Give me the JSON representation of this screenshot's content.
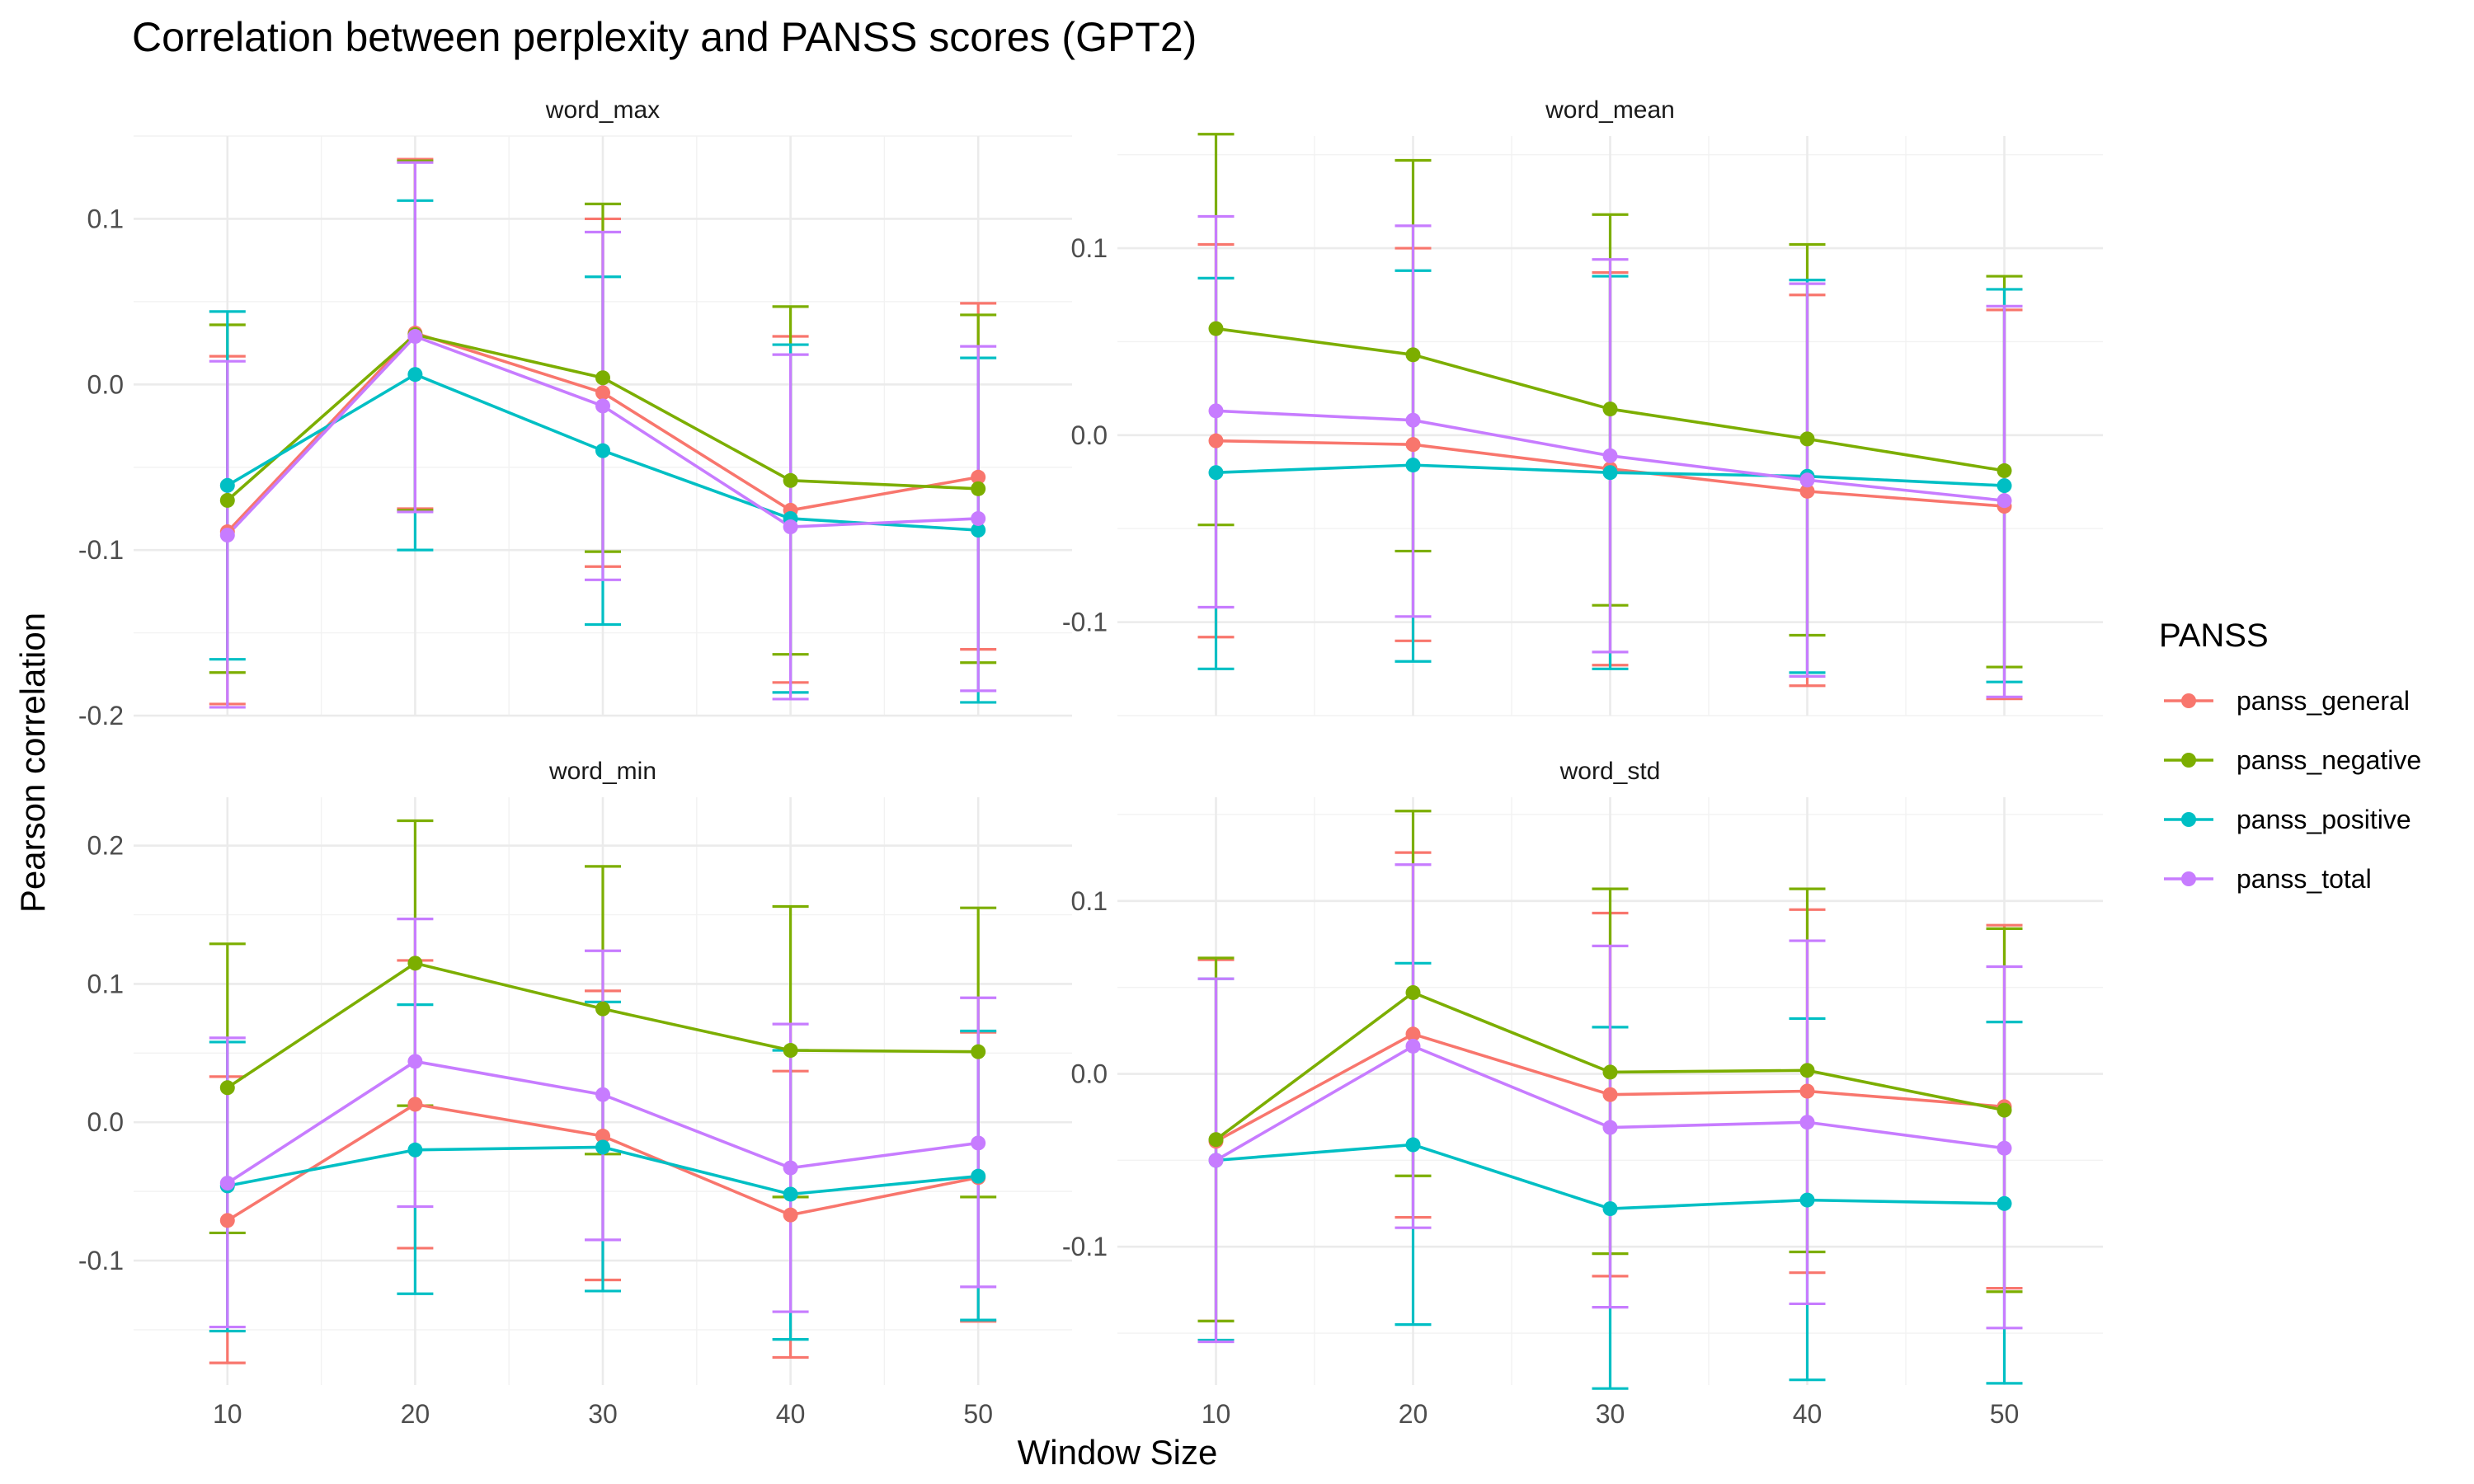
{
  "title": "Correlation between perplexity and PANSS scores (GPT2)",
  "xlabel": "Window Size",
  "ylabel": "Pearson correlation",
  "legend": {
    "title": "PANSS",
    "placement": "right",
    "items": [
      {
        "name": "panss_general",
        "color": "#F8766D"
      },
      {
        "name": "panss_negative",
        "color": "#7CAE00"
      },
      {
        "name": "panss_positive",
        "color": "#00BFC4"
      },
      {
        "name": "panss_total",
        "color": "#C77CFF"
      }
    ]
  },
  "chart_data": [
    {
      "type": "line",
      "facet": "word_max",
      "x": [
        10,
        20,
        30,
        40,
        50
      ],
      "ylim": [
        -0.2,
        0.15
      ],
      "yticks": [
        -0.2,
        -0.1,
        0.0,
        0.1
      ],
      "ytick_labels": [
        "-0.2",
        "-0.1",
        "0.0",
        "0.1"
      ],
      "series": [
        {
          "name": "panss_general",
          "values": [
            -0.089,
            0.031,
            -0.005,
            -0.076,
            -0.056
          ],
          "lower": [
            -0.193,
            -0.075,
            -0.11,
            -0.18,
            -0.16
          ],
          "upper": [
            0.017,
            0.136,
            0.1,
            0.029,
            0.049
          ]
        },
        {
          "name": "panss_negative",
          "values": [
            -0.07,
            0.03,
            0.004,
            -0.058,
            -0.063
          ],
          "lower": [
            -0.174,
            -0.076,
            -0.101,
            -0.163,
            -0.168
          ],
          "upper": [
            0.036,
            0.135,
            0.109,
            0.047,
            0.042
          ]
        },
        {
          "name": "panss_positive",
          "values": [
            -0.061,
            0.006,
            -0.04,
            -0.081,
            -0.088
          ],
          "lower": [
            -0.166,
            -0.1,
            -0.145,
            -0.186,
            -0.192
          ],
          "upper": [
            0.044,
            0.111,
            0.065,
            0.024,
            0.016
          ]
        },
        {
          "name": "panss_total",
          "values": [
            -0.091,
            0.029,
            -0.013,
            -0.086,
            -0.081
          ],
          "lower": [
            -0.195,
            -0.077,
            -0.118,
            -0.19,
            -0.185
          ],
          "upper": [
            0.014,
            0.134,
            0.092,
            0.018,
            0.023
          ]
        }
      ]
    },
    {
      "type": "line",
      "facet": "word_mean",
      "x": [
        10,
        20,
        30,
        40,
        50
      ],
      "ylim": [
        -0.15,
        0.16
      ],
      "yticks": [
        -0.1,
        0.0,
        0.1
      ],
      "ytick_labels": [
        "-0.1",
        "0.0",
        "0.1"
      ],
      "series": [
        {
          "name": "panss_general",
          "values": [
            -0.003,
            -0.005,
            -0.018,
            -0.03,
            -0.038
          ],
          "lower": [
            -0.108,
            -0.11,
            -0.123,
            -0.134,
            -0.141
          ],
          "upper": [
            0.102,
            0.1,
            0.087,
            0.075,
            0.067
          ]
        },
        {
          "name": "panss_negative",
          "values": [
            0.057,
            0.043,
            0.014,
            -0.002,
            -0.019
          ],
          "lower": [
            -0.048,
            -0.062,
            -0.091,
            -0.107,
            -0.124
          ],
          "upper": [
            0.161,
            0.147,
            0.118,
            0.102,
            0.085
          ]
        },
        {
          "name": "panss_positive",
          "values": [
            -0.02,
            -0.016,
            -0.02,
            -0.022,
            -0.027
          ],
          "lower": [
            -0.125,
            -0.121,
            -0.125,
            -0.127,
            -0.132
          ],
          "upper": [
            0.084,
            0.088,
            0.085,
            0.083,
            0.078
          ]
        },
        {
          "name": "panss_total",
          "values": [
            0.013,
            0.008,
            -0.011,
            -0.024,
            -0.035
          ],
          "lower": [
            -0.092,
            -0.097,
            -0.116,
            -0.129,
            -0.14
          ],
          "upper": [
            0.117,
            0.112,
            0.094,
            0.081,
            0.069
          ]
        }
      ]
    },
    {
      "type": "line",
      "facet": "word_min",
      "x": [
        10,
        20,
        30,
        40,
        50
      ],
      "ylim": [
        -0.19,
        0.235
      ],
      "yticks": [
        -0.1,
        0.0,
        0.1,
        0.2
      ],
      "ytick_labels": [
        "-0.1",
        "0.0",
        "0.1",
        "0.2"
      ],
      "series": [
        {
          "name": "panss_general",
          "values": [
            -0.071,
            0.013,
            -0.01,
            -0.067,
            -0.04
          ],
          "lower": [
            -0.174,
            -0.091,
            -0.114,
            -0.17,
            -0.144
          ],
          "upper": [
            0.033,
            0.117,
            0.095,
            0.037,
            0.065
          ]
        },
        {
          "name": "panss_negative",
          "values": [
            0.025,
            0.115,
            0.082,
            0.052,
            0.051
          ],
          "lower": [
            -0.08,
            0.012,
            -0.023,
            -0.054,
            -0.054
          ],
          "upper": [
            0.129,
            0.218,
            0.185,
            0.156,
            0.155
          ]
        },
        {
          "name": "panss_positive",
          "values": [
            -0.046,
            -0.02,
            -0.018,
            -0.052,
            -0.039
          ],
          "lower": [
            -0.151,
            -0.124,
            -0.122,
            -0.157,
            -0.143
          ],
          "upper": [
            0.058,
            0.085,
            0.087,
            0.052,
            0.066
          ]
        },
        {
          "name": "panss_total",
          "values": [
            -0.044,
            0.044,
            0.02,
            -0.033,
            -0.015
          ],
          "lower": [
            -0.148,
            -0.061,
            -0.085,
            -0.137,
            -0.119
          ],
          "upper": [
            0.061,
            0.147,
            0.124,
            0.071,
            0.09
          ]
        }
      ]
    },
    {
      "type": "line",
      "facet": "word_std",
      "x": [
        10,
        20,
        30,
        40,
        50
      ],
      "ylim": [
        -0.18,
        0.16
      ],
      "yticks": [
        -0.1,
        0.0,
        0.1
      ],
      "ytick_labels": [
        "-0.1",
        "0.0",
        "0.1"
      ],
      "series": [
        {
          "name": "panss_general",
          "values": [
            -0.039,
            0.023,
            -0.012,
            -0.01,
            -0.019
          ],
          "lower": [
            -0.143,
            -0.083,
            -0.117,
            -0.115,
            -0.124
          ],
          "upper": [
            0.066,
            0.128,
            0.093,
            0.095,
            0.086
          ]
        },
        {
          "name": "panss_negative",
          "values": [
            -0.038,
            0.047,
            0.001,
            0.002,
            -0.021
          ],
          "lower": [
            -0.143,
            -0.059,
            -0.104,
            -0.103,
            -0.126
          ],
          "upper": [
            0.067,
            0.152,
            0.107,
            0.107,
            0.084
          ]
        },
        {
          "name": "panss_positive",
          "values": [
            -0.05,
            -0.041,
            -0.078,
            -0.073,
            -0.075
          ],
          "lower": [
            -0.154,
            -0.145,
            -0.182,
            -0.177,
            -0.179
          ],
          "upper": [
            0.055,
            0.064,
            0.027,
            0.032,
            0.03
          ]
        },
        {
          "name": "panss_total",
          "values": [
            -0.05,
            0.016,
            -0.031,
            -0.028,
            -0.043
          ],
          "lower": [
            -0.155,
            -0.089,
            -0.135,
            -0.133,
            -0.147
          ],
          "upper": [
            0.055,
            0.121,
            0.074,
            0.077,
            0.062
          ]
        }
      ]
    }
  ]
}
